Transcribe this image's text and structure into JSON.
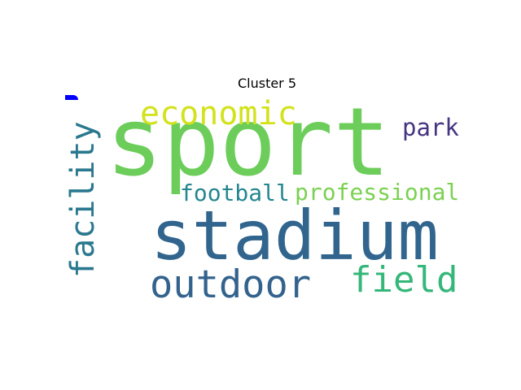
{
  "title": "Cluster 5",
  "words": {
    "sport": {
      "text": "sport",
      "color": "#6ccd5a"
    },
    "stadium": {
      "text": "stadium",
      "color": "#31658e"
    },
    "outdoor": {
      "text": "outdoor",
      "color": "#33638d"
    },
    "field": {
      "text": "field",
      "color": "#35b779"
    },
    "facility": {
      "text": "facility",
      "color": "#2a788e"
    },
    "economic": {
      "text": "economic",
      "color": "#d2e21b"
    },
    "park": {
      "text": "park",
      "color": "#463480"
    },
    "football": {
      "text": "football",
      "color": "#24868e"
    },
    "professional": {
      "text": "professional",
      "color": "#7ad151"
    }
  }
}
